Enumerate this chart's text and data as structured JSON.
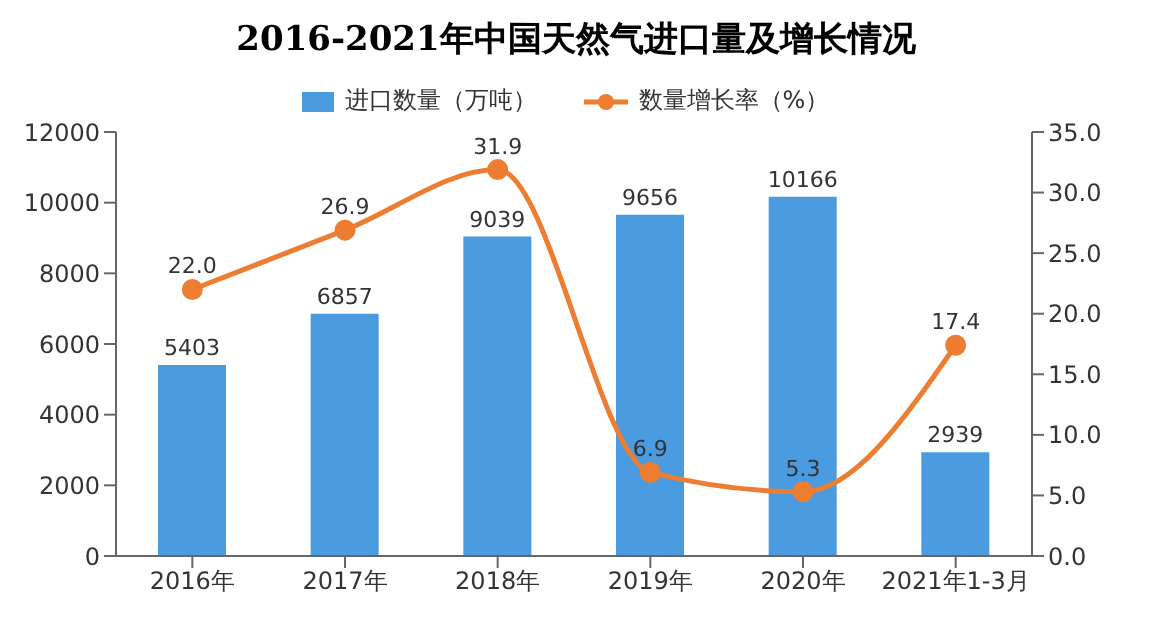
{
  "chart_data": {
    "type": "bar",
    "title": "2016-2021年中国天然气进口量及增长情况",
    "categories": [
      "2016年",
      "2017年",
      "2018年",
      "2019年",
      "2020年",
      "2021年1-3月"
    ],
    "series": [
      {
        "name": "进口数量（万吨）",
        "color": "#4a9be0",
        "values": [
          5403,
          6857,
          9039,
          9656,
          10166,
          2939
        ],
        "value_labels": [
          "5403",
          "6857",
          "9039",
          "9656",
          "10166",
          "2939"
        ]
      },
      {
        "name": "数量增长率（%）",
        "type": "line",
        "axis": "y2",
        "color": "#ed7d31",
        "values": [
          22.0,
          26.9,
          31.9,
          6.9,
          5.3,
          17.4
        ],
        "value_labels": [
          "22.0",
          "26.9",
          "31.9",
          "6.9",
          "5.3",
          "17.4"
        ]
      }
    ],
    "ylim": [
      0,
      12000
    ],
    "yticks": [
      0,
      2000,
      4000,
      6000,
      8000,
      10000,
      12000
    ],
    "y2lim": [
      0,
      35
    ],
    "y2ticks": [
      {
        "value": 0,
        "label": "0.0"
      },
      {
        "value": 5,
        "label": "5.0"
      },
      {
        "value": 10,
        "label": "10.0"
      },
      {
        "value": 15,
        "label": "15.0"
      },
      {
        "value": 20,
        "label": "20.0"
      },
      {
        "value": 25,
        "label": "25.0"
      },
      {
        "value": 30,
        "label": "30.0"
      },
      {
        "value": 35,
        "label": "35.0"
      }
    ],
    "legend": "top",
    "marker": "circle",
    "line_style": "solid",
    "grid": false
  }
}
